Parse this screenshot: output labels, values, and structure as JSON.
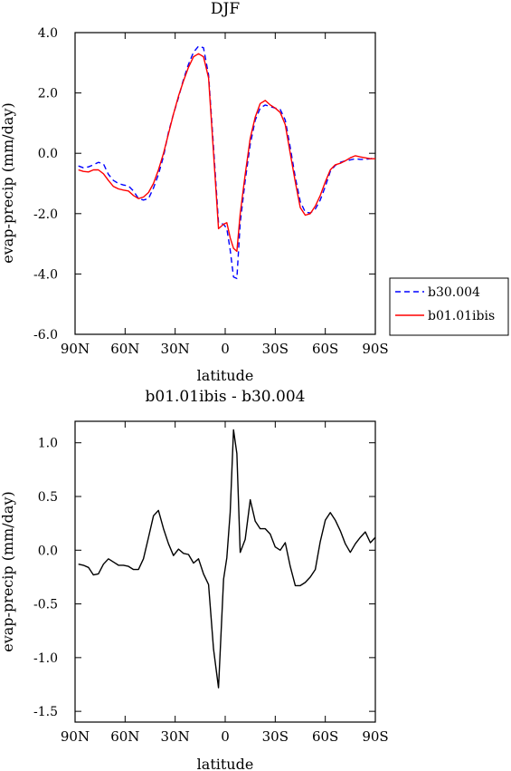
{
  "chart_data": [
    {
      "type": "line",
      "title": "DJF",
      "xlabel": "latitude",
      "ylabel": "evap-precip (mm/day)",
      "xlim": [
        -90,
        90
      ],
      "ylim": [
        -6,
        4
      ],
      "xticks": [
        -90,
        -60,
        -30,
        0,
        30,
        60,
        90
      ],
      "xtick_labels": [
        "90N",
        "60N",
        "30N",
        "0",
        "30S",
        "60S",
        "90S"
      ],
      "yticks": [
        -6,
        -4,
        -2,
        0,
        2,
        4
      ],
      "ytick_labels": [
        "-6.0",
        "-4.0",
        "-2.0",
        "0.0",
        "2.0",
        "4.0"
      ],
      "grid": false,
      "legend": "right",
      "series": [
        {
          "name": "b30.004",
          "color": "#0000ff",
          "dash": "dashed",
          "x": [
            -88,
            -85,
            -82,
            -79,
            -76,
            -73,
            -70,
            -67,
            -64,
            -61,
            -58,
            -55,
            -52,
            -49,
            -46,
            -43,
            -40,
            -37,
            -34,
            -31,
            -28,
            -25,
            -22,
            -19,
            -16,
            -13,
            -10,
            -7,
            -4,
            -1,
            1,
            3,
            5,
            7,
            9,
            12,
            15,
            18,
            21,
            24,
            27,
            30,
            33,
            36,
            39,
            42,
            45,
            48,
            51,
            54,
            57,
            60,
            63,
            66,
            69,
            72,
            75,
            78,
            81,
            84,
            87,
            90
          ],
          "y": [
            -0.42,
            -0.48,
            -0.45,
            -0.38,
            -0.3,
            -0.35,
            -0.7,
            -0.9,
            -1.0,
            -1.05,
            -1.08,
            -1.25,
            -1.5,
            -1.55,
            -1.5,
            -1.15,
            -0.7,
            -0.1,
            0.7,
            1.3,
            1.85,
            2.45,
            2.95,
            3.35,
            3.55,
            3.5,
            2.6,
            0.2,
            -2.3,
            -2.35,
            -2.5,
            -3.2,
            -4.1,
            -4.15,
            -2.3,
            -0.9,
            0.3,
            1.1,
            1.5,
            1.6,
            1.55,
            1.5,
            1.45,
            1.1,
            0.2,
            -0.8,
            -1.6,
            -1.95,
            -1.98,
            -1.85,
            -1.55,
            -1.1,
            -0.6,
            -0.4,
            -0.3,
            -0.25,
            -0.22,
            -0.18,
            -0.2,
            -0.2,
            -0.18,
            -0.15
          ]
        },
        {
          "name": "b01.01ibis",
          "color": "#ff0000",
          "dash": "solid",
          "x": [
            -88,
            -85,
            -82,
            -79,
            -76,
            -73,
            -70,
            -67,
            -64,
            -61,
            -58,
            -55,
            -52,
            -49,
            -46,
            -43,
            -40,
            -37,
            -34,
            -31,
            -28,
            -25,
            -22,
            -19,
            -16,
            -13,
            -10,
            -7,
            -4,
            -1,
            1,
            3,
            5,
            7,
            9,
            12,
            15,
            18,
            21,
            24,
            27,
            30,
            33,
            36,
            39,
            42,
            45,
            48,
            51,
            54,
            57,
            60,
            63,
            66,
            69,
            72,
            75,
            78,
            81,
            84,
            87,
            90
          ],
          "y": [
            -0.55,
            -0.6,
            -0.62,
            -0.55,
            -0.55,
            -0.68,
            -0.9,
            -1.1,
            -1.18,
            -1.22,
            -1.25,
            -1.4,
            -1.5,
            -1.45,
            -1.3,
            -1.0,
            -0.55,
            0.0,
            0.65,
            1.3,
            1.9,
            2.4,
            2.85,
            3.2,
            3.3,
            3.2,
            2.5,
            0.0,
            -2.5,
            -2.35,
            -2.3,
            -2.8,
            -3.15,
            -3.25,
            -2.0,
            -0.7,
            0.5,
            1.2,
            1.65,
            1.75,
            1.6,
            1.5,
            1.35,
            0.95,
            0.0,
            -0.95,
            -1.8,
            -2.05,
            -2.0,
            -1.75,
            -1.4,
            -0.95,
            -0.55,
            -0.38,
            -0.33,
            -0.25,
            -0.15,
            -0.08,
            -0.12,
            -0.15,
            -0.18,
            -0.18
          ]
        }
      ]
    },
    {
      "type": "line",
      "title": "b01.01ibis - b30.004",
      "xlabel": "latitude",
      "ylabel": "evap-precip (mm/day)",
      "xlim": [
        -90,
        90
      ],
      "ylim": [
        -1.6,
        1.2
      ],
      "xticks": [
        -90,
        -60,
        -30,
        0,
        30,
        60,
        90
      ],
      "xtick_labels": [
        "90N",
        "60N",
        "30N",
        "0",
        "30S",
        "60S",
        "90S"
      ],
      "yticks": [
        -1.5,
        -1.0,
        -0.5,
        0.0,
        0.5,
        1.0
      ],
      "ytick_labels": [
        "-1.5",
        "-1.0",
        "-0.5",
        "0.0",
        "0.5",
        "1.0"
      ],
      "grid": false,
      "series": [
        {
          "color": "#000000",
          "dash": "solid",
          "x": [
            -88,
            -85,
            -82,
            -79,
            -76,
            -73,
            -70,
            -67,
            -64,
            -61,
            -58,
            -55,
            -52,
            -49,
            -46,
            -43,
            -40,
            -37,
            -34,
            -31,
            -28,
            -25,
            -22,
            -19,
            -16,
            -13,
            -10,
            -7,
            -4,
            -1,
            1,
            3,
            5,
            7,
            9,
            12,
            15,
            18,
            21,
            24,
            27,
            30,
            33,
            36,
            39,
            42,
            45,
            48,
            51,
            54,
            57,
            60,
            63,
            66,
            69,
            72,
            75,
            78,
            81,
            84,
            87,
            90
          ],
          "y": [
            -0.13,
            -0.14,
            -0.16,
            -0.23,
            -0.22,
            -0.13,
            -0.08,
            -0.11,
            -0.14,
            -0.14,
            -0.15,
            -0.18,
            -0.18,
            -0.08,
            0.12,
            0.32,
            0.37,
            0.2,
            0.06,
            -0.05,
            0.01,
            -0.03,
            -0.04,
            -0.12,
            -0.08,
            -0.22,
            -0.32,
            -0.92,
            -1.28,
            -0.27,
            -0.07,
            0.35,
            1.12,
            0.9,
            -0.02,
            0.1,
            0.47,
            0.27,
            0.2,
            0.2,
            0.15,
            0.03,
            0.0,
            0.07,
            -0.15,
            -0.33,
            -0.33,
            -0.3,
            -0.25,
            -0.18,
            0.08,
            0.28,
            0.35,
            0.28,
            0.18,
            0.06,
            -0.02,
            0.06,
            0.12,
            0.17,
            0.07,
            0.12
          ]
        }
      ]
    }
  ]
}
